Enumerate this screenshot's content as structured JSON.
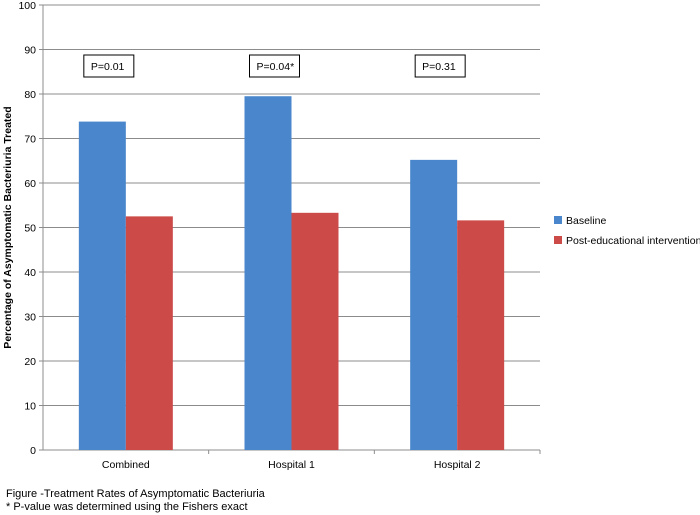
{
  "chart_data": {
    "type": "bar",
    "categories": [
      "Combined",
      "Hospital 1",
      "Hospital 2"
    ],
    "series": [
      {
        "name": "Baseline",
        "values": [
          73.8,
          79.5,
          65.2
        ],
        "color": "#4a86cc"
      },
      {
        "name": "Post-educational intervention",
        "values": [
          52.5,
          53.3,
          51.6
        ],
        "color": "#cc4a48"
      }
    ],
    "ylabel": "Percentage of Asymptomatic Bacteriuria Treated",
    "xlabel": "",
    "ylim": [
      0,
      100
    ],
    "yticks": [
      0,
      10,
      20,
      30,
      40,
      50,
      60,
      70,
      80,
      90,
      100
    ],
    "grid": true,
    "legend": "right",
    "annotations": [
      "P=0.01",
      "P=0.04*",
      "P=0.31"
    ]
  },
  "caption": {
    "line1": "Figure -Treatment Rates of Asymptomatic Bacteriuria",
    "line2": "* P-value was determined using the Fishers exact"
  }
}
